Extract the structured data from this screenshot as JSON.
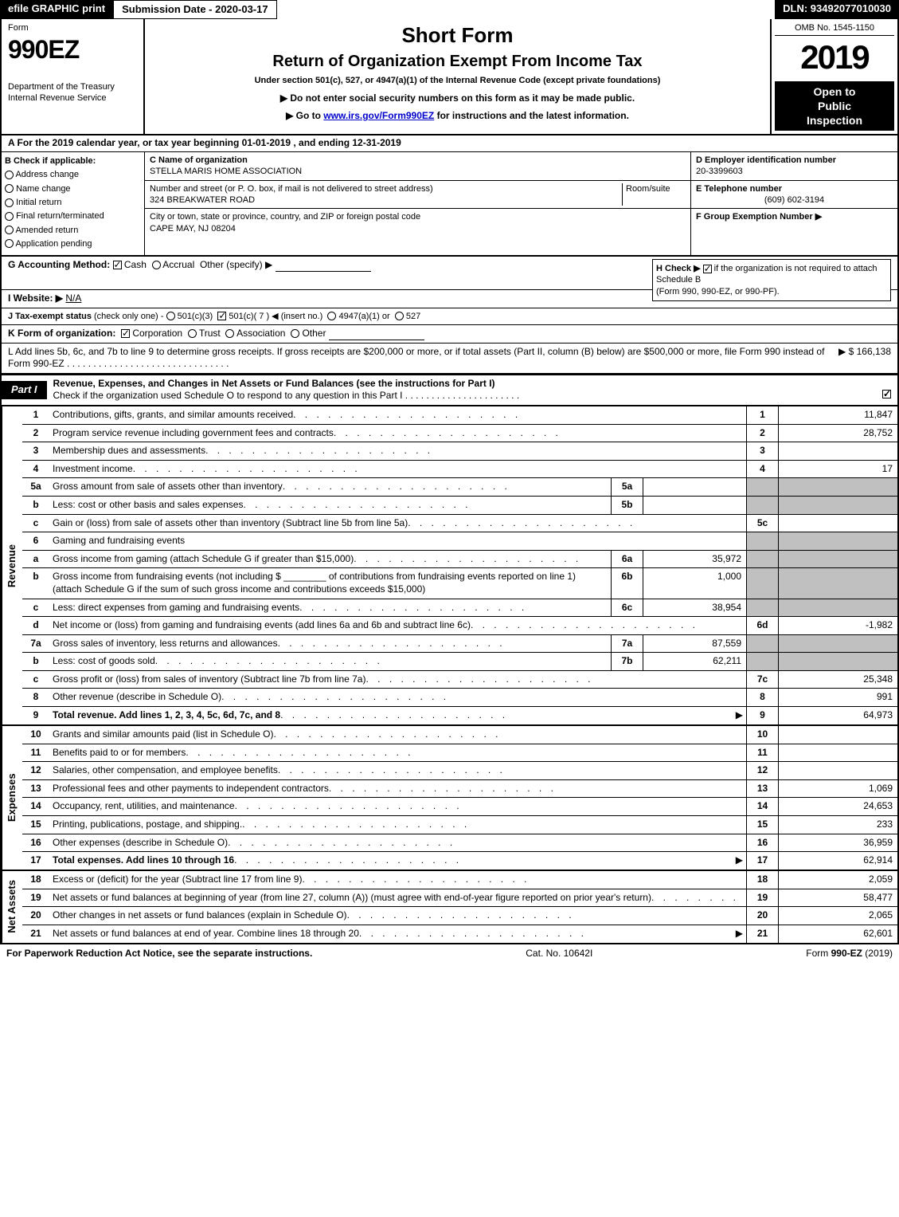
{
  "top_bar": {
    "efile": "efile GRAPHIC print",
    "submission": "Submission Date - 2020-03-17",
    "dln": "DLN: 93492077010030"
  },
  "header": {
    "form_label": "Form",
    "form_code": "990EZ",
    "dept": "Department of the Treasury",
    "irs": "Internal Revenue Service",
    "title1": "Short Form",
    "title2": "Return of Organization Exempt From Income Tax",
    "subtitle": "Under section 501(c), 527, or 4947(a)(1) of the Internal Revenue Code (except private foundations)",
    "notice1": "▶ Do not enter social security numbers on this form as it may be made public.",
    "notice2_pre": "▶ Go to ",
    "notice2_link": "www.irs.gov/Form990EZ",
    "notice2_post": " for instructions and the latest information.",
    "omb": "OMB No. 1545-1150",
    "year": "2019",
    "inspection1": "Open to",
    "inspection2": "Public",
    "inspection3": "Inspection"
  },
  "section_a": "A  For the 2019 calendar year, or tax year beginning 01-01-2019 , and ending 12-31-2019",
  "col_b": {
    "label": "B  Check if applicable:",
    "addr": "Address change",
    "name": "Name change",
    "initial": "Initial return",
    "final": "Final return/terminated",
    "amended": "Amended return",
    "pending": "Application pending"
  },
  "col_c": {
    "name_label": "C Name of organization",
    "name": "STELLA MARIS HOME ASSOCIATION",
    "street_label": "Number and street (or P. O. box, if mail is not delivered to street address)",
    "room_label": "Room/suite",
    "street": "324 BREAKWATER ROAD",
    "city_label": "City or town, state or province, country, and ZIP or foreign postal code",
    "city": "CAPE MAY, NJ  08204"
  },
  "col_de": {
    "d_label": "D Employer identification number",
    "d_val": "20-3399603",
    "e_label": "E Telephone number",
    "e_val": "(609) 602-3194",
    "f_label": "F Group Exemption Number  ▶"
  },
  "lines": {
    "g_label": "G Accounting Method:",
    "g_cash": "Cash",
    "g_accrual": "Accrual",
    "g_other": "Other (specify) ▶",
    "h_label": "H  Check ▶ ",
    "h_text": " if the organization is not required to attach Schedule B",
    "h_text2": "(Form 990, 990-EZ, or 990-PF).",
    "i_label": "I Website: ▶",
    "i_val": "N/A",
    "j_label": "J Tax-exempt status",
    "j_note": "(check only one) -",
    "j_501c3": "501(c)(3)",
    "j_501c": "501(c)( 7 ) ◀ (insert no.)",
    "j_4947": "4947(a)(1) or",
    "j_527": "527",
    "k_label": "K Form of organization:",
    "k_corp": "Corporation",
    "k_trust": "Trust",
    "k_assoc": "Association",
    "k_other": "Other",
    "l_text": "L Add lines 5b, 6c, and 7b to line 9 to determine gross receipts. If gross receipts are $200,000 or more, or if total assets (Part II, column (B) below) are $500,000 or more, file Form 990 instead of Form 990-EZ",
    "l_val": "▶ $ 166,138"
  },
  "part1": {
    "label": "Part I",
    "title": "Revenue, Expenses, and Changes in Net Assets or Fund Balances (see the instructions for Part I)",
    "sub": "Check if the organization used Schedule O to respond to any question in this Part I"
  },
  "revenue_label": "Revenue",
  "expenses_label": "Expenses",
  "netassets_label": "Net Assets",
  "revenue": [
    {
      "ln": "1",
      "desc": "Contributions, gifts, grants, and similar amounts received",
      "rn": "1",
      "val": "11,847"
    },
    {
      "ln": "2",
      "desc": "Program service revenue including government fees and contracts",
      "rn": "2",
      "val": "28,752"
    },
    {
      "ln": "3",
      "desc": "Membership dues and assessments",
      "rn": "3",
      "val": ""
    },
    {
      "ln": "4",
      "desc": "Investment income",
      "rn": "4",
      "val": "17"
    },
    {
      "ln": "5a",
      "desc": "Gross amount from sale of assets other than inventory",
      "sub_ln": "5a",
      "sub_val": "",
      "shaded": true
    },
    {
      "ln": "b",
      "desc": "Less: cost or other basis and sales expenses",
      "sub_ln": "5b",
      "sub_val": "",
      "shaded": true
    },
    {
      "ln": "c",
      "desc": "Gain or (loss) from sale of assets other than inventory (Subtract line 5b from line 5a)",
      "rn": "5c",
      "val": ""
    },
    {
      "ln": "6",
      "desc": "Gaming and fundraising events",
      "shaded": true,
      "noval": true
    },
    {
      "ln": "a",
      "desc": "Gross income from gaming (attach Schedule G if greater than $15,000)",
      "sub_ln": "6a",
      "sub_val": "35,972",
      "shaded": true
    },
    {
      "ln": "b",
      "desc": "Gross income from fundraising events (not including $ ________ of contributions from fundraising events reported on line 1) (attach Schedule G if the sum of such gross income and contributions exceeds $15,000)",
      "sub_ln": "6b",
      "sub_val": "1,000",
      "shaded": true
    },
    {
      "ln": "c",
      "desc": "Less: direct expenses from gaming and fundraising events",
      "sub_ln": "6c",
      "sub_val": "38,954",
      "shaded": true
    },
    {
      "ln": "d",
      "desc": "Net income or (loss) from gaming and fundraising events (add lines 6a and 6b and subtract line 6c)",
      "rn": "6d",
      "val": "-1,982"
    },
    {
      "ln": "7a",
      "desc": "Gross sales of inventory, less returns and allowances",
      "sub_ln": "7a",
      "sub_val": "87,559",
      "shaded": true
    },
    {
      "ln": "b",
      "desc": "Less: cost of goods sold",
      "sub_ln": "7b",
      "sub_val": "62,211",
      "shaded": true
    },
    {
      "ln": "c",
      "desc": "Gross profit or (loss) from sales of inventory (Subtract line 7b from line 7a)",
      "rn": "7c",
      "val": "25,348"
    },
    {
      "ln": "8",
      "desc": "Other revenue (describe in Schedule O)",
      "rn": "8",
      "val": "991"
    },
    {
      "ln": "9",
      "desc": "Total revenue. Add lines 1, 2, 3, 4, 5c, 6d, 7c, and 8",
      "rn": "9",
      "val": "64,973",
      "bold": true,
      "arrow": true
    }
  ],
  "expenses": [
    {
      "ln": "10",
      "desc": "Grants and similar amounts paid (list in Schedule O)",
      "rn": "10",
      "val": ""
    },
    {
      "ln": "11",
      "desc": "Benefits paid to or for members",
      "rn": "11",
      "val": ""
    },
    {
      "ln": "12",
      "desc": "Salaries, other compensation, and employee benefits",
      "rn": "12",
      "val": ""
    },
    {
      "ln": "13",
      "desc": "Professional fees and other payments to independent contractors",
      "rn": "13",
      "val": "1,069"
    },
    {
      "ln": "14",
      "desc": "Occupancy, rent, utilities, and maintenance",
      "rn": "14",
      "val": "24,653"
    },
    {
      "ln": "15",
      "desc": "Printing, publications, postage, and shipping.",
      "rn": "15",
      "val": "233"
    },
    {
      "ln": "16",
      "desc": "Other expenses (describe in Schedule O)",
      "rn": "16",
      "val": "36,959"
    },
    {
      "ln": "17",
      "desc": "Total expenses. Add lines 10 through 16",
      "rn": "17",
      "val": "62,914",
      "bold": true,
      "arrow": true
    }
  ],
  "netassets": [
    {
      "ln": "18",
      "desc": "Excess or (deficit) for the year (Subtract line 17 from line 9)",
      "rn": "18",
      "val": "2,059"
    },
    {
      "ln": "19",
      "desc": "Net assets or fund balances at beginning of year (from line 27, column (A)) (must agree with end-of-year figure reported on prior year's return)",
      "rn": "19",
      "val": "58,477",
      "shaded_top": true
    },
    {
      "ln": "20",
      "desc": "Other changes in net assets or fund balances (explain in Schedule O)",
      "rn": "20",
      "val": "2,065"
    },
    {
      "ln": "21",
      "desc": "Net assets or fund balances at end of year. Combine lines 18 through 20",
      "rn": "21",
      "val": "62,601",
      "arrow": true
    }
  ],
  "footer": {
    "left": "For Paperwork Reduction Act Notice, see the separate instructions.",
    "center": "Cat. No. 10642I",
    "right": "Form 990-EZ (2019)"
  },
  "colors": {
    "shaded": "#c0c0c0",
    "black": "#000000",
    "white": "#ffffff",
    "link": "#0000cc"
  }
}
